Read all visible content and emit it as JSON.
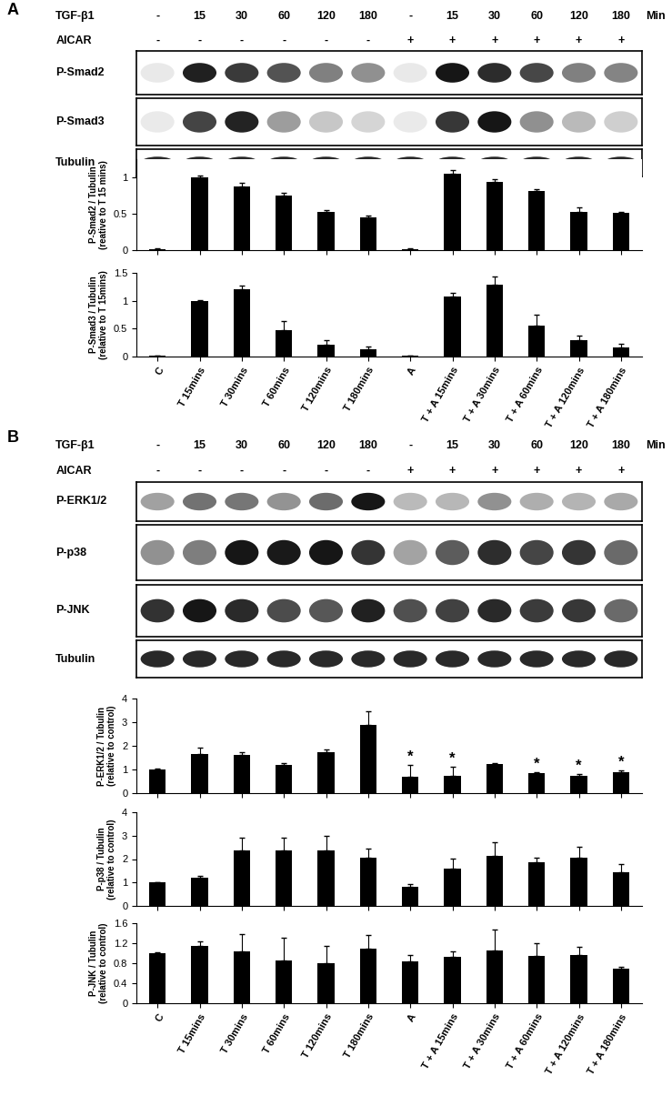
{
  "chart_data": [
    {
      "type": "bar",
      "ylabel": "P-Smad2 / Tubulin (reative to T 15 mins)",
      "categories": [
        "C",
        "T 15mins",
        "T 30mins",
        "T 60mins",
        "T 120mins",
        "T 180mins",
        "A",
        "T + A 15mins",
        "T + A 30mins",
        "T + A 60mins",
        "T + A 120mins",
        "T + A 180mins"
      ],
      "values": [
        0.01,
        1.0,
        0.87,
        0.75,
        0.53,
        0.45,
        0.01,
        1.05,
        0.94,
        0.81,
        0.53,
        0.51
      ],
      "errors": [
        0.01,
        0.02,
        0.05,
        0.04,
        0.02,
        0.03,
        0.01,
        0.05,
        0.04,
        0.03,
        0.06,
        0.02
      ],
      "ylim": [
        0,
        1.25
      ],
      "yticks": [
        0,
        0.5,
        1
      ],
      "color": "#000000",
      "tick_labels": "y"
    },
    {
      "type": "bar",
      "ylabel": "P-Smad3 / Tubulin (relative to T 15mins)",
      "categories": [
        "C",
        "T 15mins",
        "T 30mins",
        "T 60mins",
        "T 120mins",
        "T 180mins",
        "A",
        "T + A 15mins",
        "T + A 30mins",
        "T + A 60mins",
        "T + A 120mins",
        "T + A 180mins"
      ],
      "values": [
        0.01,
        1.0,
        1.2,
        0.47,
        0.22,
        0.13,
        0.01,
        1.08,
        1.28,
        0.55,
        0.3,
        0.17
      ],
      "errors": [
        0.01,
        0.01,
        0.07,
        0.17,
        0.07,
        0.05,
        0.01,
        0.06,
        0.15,
        0.2,
        0.07,
        0.06
      ],
      "ylim": [
        0,
        1.5
      ],
      "yticks": [
        0,
        0.5,
        1,
        1.5
      ],
      "color": "#000000",
      "tick_labels": true
    },
    {
      "type": "bar",
      "ylabel": "P-ERK1/2 / Tubulin (relative to control)",
      "categories": [
        "C",
        "T 15mins",
        "T 30mins",
        "T 60mins",
        "T 120mins",
        "T 180mins",
        "A",
        "T + A 15mins",
        "T + A 30mins",
        "T + A 60mins",
        "T + A 120mins",
        "T + A 180mins"
      ],
      "values": [
        1.0,
        1.65,
        1.6,
        1.2,
        1.72,
        2.9,
        0.68,
        0.72,
        1.22,
        0.83,
        0.75,
        0.9
      ],
      "errors": [
        0.02,
        0.28,
        0.15,
        0.08,
        0.12,
        0.55,
        0.5,
        0.4,
        0.05,
        0.06,
        0.04,
        0.07
      ],
      "annotations": [
        {
          "category": "A",
          "text": "*"
        },
        {
          "category": "T + A 15mins",
          "text": "*"
        },
        {
          "category": "T + A 60mins",
          "text": "*"
        },
        {
          "category": "T + A 120mins",
          "text": "*"
        },
        {
          "category": "T + A 180mins",
          "text": "*"
        }
      ],
      "ylim": [
        0,
        4
      ],
      "yticks": [
        0,
        1,
        2,
        3,
        4
      ],
      "color": "#000000",
      "tick_labels": "y"
    },
    {
      "type": "bar",
      "ylabel": "P-p38 / Tubulin (relative to control)",
      "categories": [
        "C",
        "T 15mins",
        "T 30mins",
        "T 60mins",
        "T 120mins",
        "T 180mins",
        "A",
        "T + A 15mins",
        "T + A 30mins",
        "T + A 60mins",
        "T + A 120mins",
        "T + A 180mins"
      ],
      "values": [
        1.0,
        1.22,
        2.38,
        2.35,
        2.38,
        2.05,
        0.8,
        1.6,
        2.12,
        1.85,
        2.05,
        1.45
      ],
      "errors": [
        0.02,
        0.05,
        0.55,
        0.55,
        0.6,
        0.4,
        0.15,
        0.42,
        0.6,
        0.22,
        0.48,
        0.35
      ],
      "ylim": [
        0,
        4
      ],
      "yticks": [
        0,
        1,
        2,
        3,
        4
      ],
      "color": "#000000",
      "tick_labels": "y"
    },
    {
      "type": "bar",
      "ylabel": "P-JNK / Tubulin (relative to control)",
      "categories": [
        "C",
        "T 15mins",
        "T 30mins",
        "T 60mins",
        "T 120mins",
        "T 180mins",
        "A",
        "T + A 15mins",
        "T + A 30mins",
        "T + A 60mins",
        "T + A 120mins",
        "T + A 180mins"
      ],
      "values": [
        1.0,
        1.15,
        1.04,
        0.86,
        0.8,
        1.09,
        0.84,
        0.92,
        1.05,
        0.95,
        0.97,
        0.7
      ],
      "errors": [
        0.01,
        0.08,
        0.35,
        0.45,
        0.35,
        0.27,
        0.12,
        0.12,
        0.43,
        0.25,
        0.15,
        0.03
      ],
      "ylim": [
        0,
        1.6
      ],
      "yticks": [
        0,
        0.4,
        0.8,
        1.2,
        1.6
      ],
      "color": "#000000",
      "tick_labels": true
    }
  ],
  "panels": [
    {
      "label": "A",
      "treatments": [
        {
          "label": "TGF-β1",
          "values": [
            "-",
            "15",
            "30",
            "60",
            "120",
            "180",
            "-",
            "15",
            "30",
            "60",
            "120",
            "180"
          ],
          "unit": "Min"
        },
        {
          "label": "AICAR",
          "values": [
            "-",
            "-",
            "-",
            "-",
            "-",
            "-",
            "+",
            "+",
            "+",
            "+",
            "+",
            "+"
          ]
        }
      ],
      "blots": [
        "P-Smad2",
        "P-Smad3",
        "Tubulin"
      ]
    },
    {
      "label": "B",
      "treatments": [
        {
          "label": "TGF-β1",
          "values": [
            "-",
            "15",
            "30",
            "60",
            "120",
            "180",
            "-",
            "15",
            "30",
            "60",
            "120",
            "180"
          ],
          "unit": "Min"
        },
        {
          "label": "AICAR",
          "values": [
            "-",
            "-",
            "-",
            "-",
            "-",
            "-",
            "+",
            "+",
            "+",
            "+",
            "+",
            "+"
          ]
        }
      ],
      "blots": [
        "P-ERK1/2",
        "P-p38",
        "P-JNK",
        "Tubulin"
      ]
    }
  ]
}
